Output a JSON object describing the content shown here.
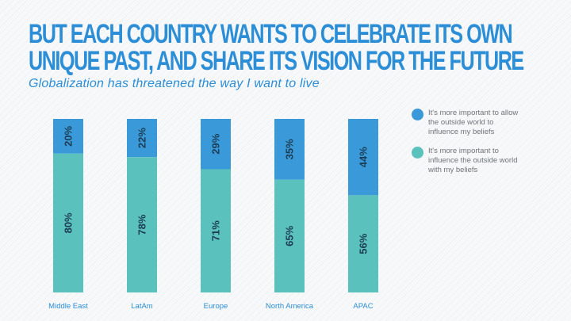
{
  "header": {
    "title_line1": "BUT EACH COUNTRY WANTS TO CELEBRATE ITS OWN",
    "title_line2": "UNIQUE PAST, AND SHARE ITS VISION FOR THE FUTURE",
    "subtitle": "Globalization has threatened the way I want to live"
  },
  "colors": {
    "title": "#2b8ed6",
    "series_outside_world": "#3a9ad9",
    "series_influence_outside": "#5bc1bd",
    "bar_label": "#1c3d55",
    "axis_label": "#2b8ed6",
    "legend_text": "#6f7478"
  },
  "chart_data": {
    "type": "bar",
    "stacked": true,
    "normalized_to_percent": true,
    "title": "Globalization has threatened the way I want to live",
    "categories": [
      "Middle East",
      "LatAm",
      "Europe",
      "North America",
      "APAC"
    ],
    "series": [
      {
        "name": "It's more important to allow the outside world to influence my beliefs",
        "values": [
          20,
          22,
          29,
          35,
          44
        ],
        "value_labels": [
          "20%",
          "22%",
          "29%",
          "35%",
          "44%"
        ],
        "position": "top"
      },
      {
        "name": "It's more important to influence the outside world with my beliefs",
        "values": [
          80,
          78,
          71,
          65,
          56
        ],
        "value_labels": [
          "80%",
          "78%",
          "71%",
          "65%",
          "56%"
        ],
        "position": "bottom"
      }
    ],
    "ylim": [
      0,
      100
    ],
    "unit": "%",
    "legend_position": "right"
  }
}
